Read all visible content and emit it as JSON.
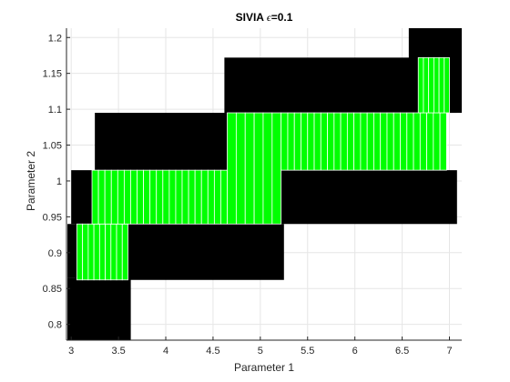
{
  "chart_data": {
    "type": "box_paving",
    "title_prefix": "SIVIA ",
    "title_symbol": "ϵ",
    "title_suffix": "=0.1",
    "xlabel": "Parameter 1",
    "ylabel": "Parameter 2",
    "xlim": [
      2.95,
      7.13
    ],
    "ylim": [
      0.778,
      1.213
    ],
    "xticks": [
      3,
      3.5,
      4,
      4.5,
      5,
      5.5,
      6,
      6.5,
      7
    ],
    "xtick_labels": [
      "3",
      "3.5",
      "4",
      "4.5",
      "5",
      "5.5",
      "6",
      "6.5",
      "7"
    ],
    "yticks": [
      0.8,
      0.85,
      0.9,
      0.95,
      1.0,
      1.05,
      1.1,
      1.15,
      1.2
    ],
    "ytick_labels": [
      "0.8",
      "0.85",
      "0.9",
      "0.95",
      "1",
      "1.05",
      "1.1",
      "1.15",
      "1.2"
    ],
    "grid": true,
    "colors": {
      "undetermined": "#000000",
      "feasible": "#00ff00",
      "box_edge": "#ffffff",
      "grid": "#e6e6e6",
      "axis": "#262626"
    },
    "undetermined_boxes": [
      {
        "x": [
          2.96,
          3.63
        ],
        "y": [
          0.778,
          0.865
        ]
      },
      {
        "x": [
          2.96,
          3.15
        ],
        "y": [
          0.865,
          0.94
        ]
      },
      {
        "x": [
          3.15,
          5.25
        ],
        "y": [
          0.862,
          0.94
        ]
      },
      {
        "x": [
          3.0,
          3.25
        ],
        "y": [
          0.94,
          1.015
        ]
      },
      {
        "x": [
          5.2,
          7.08
        ],
        "y": [
          0.94,
          1.015
        ]
      },
      {
        "x": [
          3.25,
          4.65
        ],
        "y": [
          1.015,
          1.095
        ]
      },
      {
        "x": [
          4.62,
          7.08
        ],
        "y": [
          1.095,
          1.172
        ]
      },
      {
        "x": [
          6.57,
          7.13
        ],
        "y": [
          1.095,
          1.213
        ]
      }
    ],
    "feasible_boxes": [
      {
        "x": [
          3.06,
          3.6
        ],
        "y": [
          0.862,
          0.94
        ],
        "cols": 9
      },
      {
        "x": [
          3.22,
          4.65
        ],
        "y": [
          0.94,
          1.015
        ],
        "cols": 21
      },
      {
        "x": [
          4.65,
          5.22
        ],
        "y": [
          0.94,
          1.095
        ],
        "cols": 6
      },
      {
        "x": [
          5.22,
          6.97
        ],
        "y": [
          1.015,
          1.095
        ],
        "cols": 25
      },
      {
        "x": [
          6.67,
          7.0
        ],
        "y": [
          1.095,
          1.172
        ],
        "cols": 6
      }
    ]
  }
}
